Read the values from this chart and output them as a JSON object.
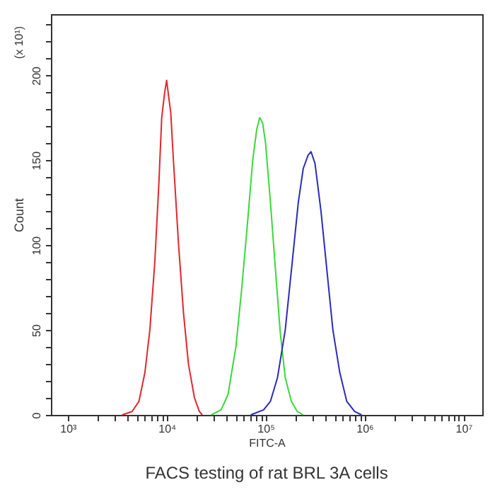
{
  "chart_data": {
    "type": "line",
    "title": "FACS testing of rat BRL 3A cells",
    "xlabel": "FITC-A",
    "ylabel": "Count",
    "annotations": [
      "(x 10¹)"
    ],
    "log": "x",
    "grid": false,
    "marker": "none",
    "line_style": "solid",
    "xlim": [
      676,
      15500000
    ],
    "ylim": [
      0,
      236
    ],
    "xticks": [
      {
        "value": 1000,
        "label": "10³"
      },
      {
        "value": 2000,
        "label": null
      },
      {
        "value": 3000,
        "label": null
      },
      {
        "value": 4000,
        "label": null
      },
      {
        "value": 5000,
        "label": null
      },
      {
        "value": 6000,
        "label": null
      },
      {
        "value": 7000,
        "label": null
      },
      {
        "value": 8000,
        "label": null
      },
      {
        "value": 9000,
        "label": null
      },
      {
        "value": 10000,
        "label": "10⁴"
      },
      {
        "value": 20000,
        "label": null
      },
      {
        "value": 30000,
        "label": null
      },
      {
        "value": 40000,
        "label": null
      },
      {
        "value": 50000,
        "label": null
      },
      {
        "value": 60000,
        "label": null
      },
      {
        "value": 70000,
        "label": null
      },
      {
        "value": 80000,
        "label": null
      },
      {
        "value": 90000,
        "label": null
      },
      {
        "value": 100000,
        "label": "10⁵"
      },
      {
        "value": 200000,
        "label": null
      },
      {
        "value": 300000,
        "label": null
      },
      {
        "value": 400000,
        "label": null
      },
      {
        "value": 500000,
        "label": null
      },
      {
        "value": 600000,
        "label": null
      },
      {
        "value": 700000,
        "label": null
      },
      {
        "value": 800000,
        "label": null
      },
      {
        "value": 900000,
        "label": null
      },
      {
        "value": 1000000,
        "label": "10⁶"
      },
      {
        "value": 2000000,
        "label": null
      },
      {
        "value": 3000000,
        "label": null
      },
      {
        "value": 4000000,
        "label": null
      },
      {
        "value": 5000000,
        "label": null
      },
      {
        "value": 6000000,
        "label": null
      },
      {
        "value": 7000000,
        "label": null
      },
      {
        "value": 8000000,
        "label": null
      },
      {
        "value": 9000000,
        "label": null
      },
      {
        "value": 10000000,
        "label": "10⁷"
      }
    ],
    "yticks": [
      0,
      {
        "value": 10,
        "label": null
      },
      {
        "value": 20,
        "label": null
      },
      {
        "value": 30,
        "label": null
      },
      {
        "value": 40,
        "label": null
      },
      50,
      {
        "value": 60,
        "label": null
      },
      {
        "value": 70,
        "label": null
      },
      {
        "value": 80,
        "label": null
      },
      {
        "value": 90,
        "label": null
      },
      100,
      {
        "value": 110,
        "label": null
      },
      {
        "value": 120,
        "label": null
      },
      {
        "value": 130,
        "label": null
      },
      {
        "value": 140,
        "label": null
      },
      150,
      {
        "value": 160,
        "label": null
      },
      {
        "value": 170,
        "label": null
      },
      {
        "value": 180,
        "label": null
      },
      {
        "value": 190,
        "label": null
      },
      200,
      {
        "value": 210,
        "label": null
      },
      {
        "value": 220,
        "label": null
      },
      {
        "value": 230,
        "label": null
      }
    ],
    "series": [
      {
        "color": "#e3262c",
        "x": [
          3550,
          4470,
          5250,
          6030,
          6760,
          7590,
          8320,
          8910,
          9550,
          10000,
          10500,
          11000,
          11700,
          13200,
          14800,
          16600,
          19100,
          21400,
          22900
        ],
        "values": [
          0,
          2,
          8,
          25,
          50,
          90,
          135,
          175,
          190,
          197,
          187,
          178,
          150,
          100,
          60,
          30,
          10,
          2,
          0
        ]
      },
      {
        "color": "#3ad83a",
        "x": [
          28200,
          35500,
          41700,
          50100,
          57500,
          66100,
          74100,
          81300,
          87100,
          93300,
          100000,
          112000,
          126000,
          141000,
          158000,
          182000,
          209000,
          240000
        ],
        "values": [
          0,
          3,
          12,
          40,
          75,
          115,
          150,
          168,
          175,
          172,
          160,
          125,
          85,
          48,
          22,
          8,
          2,
          0
        ]
      },
      {
        "color": "#2a2cb8",
        "x": [
          70800,
          95500,
          112000,
          132000,
          158000,
          186000,
          214000,
          240000,
          269000,
          288000,
          316000,
          363000,
          417000,
          479000,
          562000,
          661000,
          794000,
          933000
        ],
        "values": [
          0,
          3,
          8,
          22,
          50,
          90,
          125,
          145,
          153,
          155,
          148,
          120,
          85,
          50,
          25,
          8,
          2,
          0
        ]
      }
    ]
  }
}
